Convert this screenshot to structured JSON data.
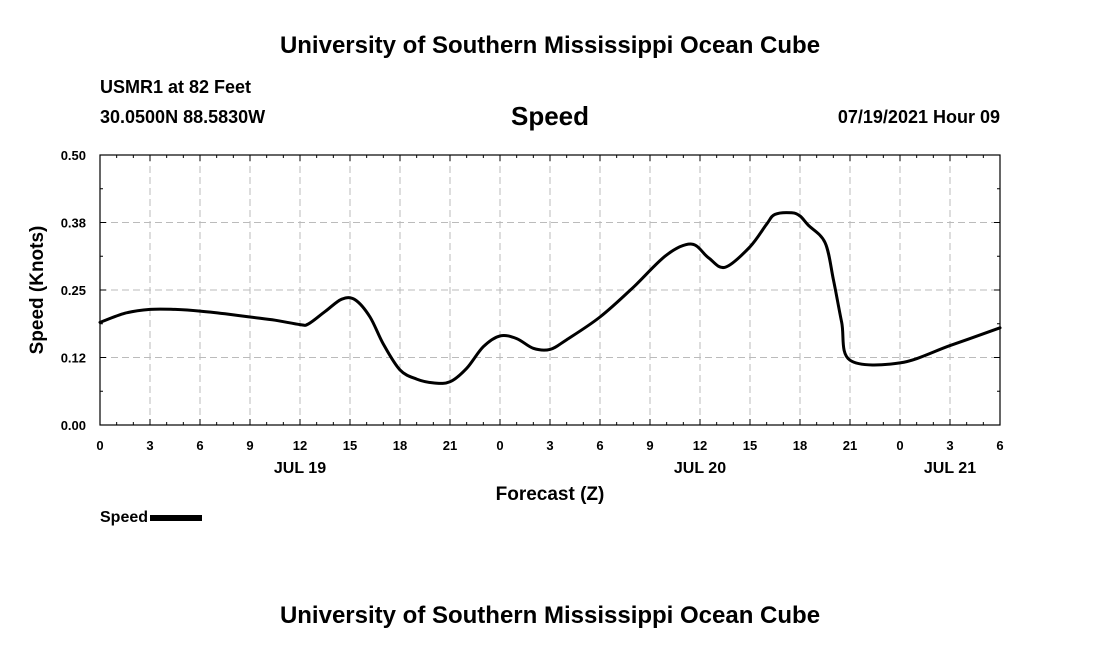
{
  "header": {
    "title_top": "University of Southern Mississippi Ocean Cube",
    "title_bottom": "University of Southern Mississippi Ocean Cube",
    "station": "USMR1 at 82 Feet",
    "location": "30.0500N  88.5830W",
    "datetime": "07/19/2021 Hour 09"
  },
  "legend": {
    "label": "Speed"
  },
  "colors": {
    "line": "#000000",
    "grid": "#bbbbbb"
  },
  "chart_data": {
    "type": "line",
    "title": "Speed",
    "xlabel": "Forecast (Z)",
    "ylabel": "Speed (Knots)",
    "xlim": [
      0,
      54
    ],
    "ylim": [
      0,
      0.5
    ],
    "yticks": [
      0.0,
      0.125,
      0.25,
      0.375,
      0.5
    ],
    "ytick_labels": [
      "0.00",
      "0.12",
      "0.25",
      "0.38",
      "0.50"
    ],
    "xticks": [
      0,
      3,
      6,
      9,
      12,
      15,
      18,
      21,
      24,
      27,
      30,
      33,
      36,
      39,
      42,
      45,
      48,
      51,
      54
    ],
    "xtick_labels": [
      "0",
      "3",
      "6",
      "9",
      "12",
      "15",
      "18",
      "21",
      "0",
      "3",
      "6",
      "9",
      "12",
      "15",
      "18",
      "21",
      "0",
      "3",
      "6"
    ],
    "date_labels": [
      {
        "x": 12,
        "label": "JUL 19"
      },
      {
        "x": 36,
        "label": "JUL 20"
      },
      {
        "x": 51,
        "label": "JUL 21"
      }
    ],
    "series": [
      {
        "name": "Speed",
        "x": [
          0,
          1.5,
          3,
          4.5,
          6,
          7.5,
          9,
          10.5,
          12,
          12.5,
          13.5,
          14.5,
          15.3,
          16.2,
          17,
          18,
          19,
          20,
          21,
          22,
          23,
          24,
          25,
          26,
          27,
          28,
          30,
          32,
          34,
          35.5,
          36.5,
          37.5,
          39,
          40,
          40.5,
          41.5,
          42,
          42.5,
          43.5,
          44,
          44.5,
          45,
          48,
          51,
          54
        ],
        "y": [
          0.19,
          0.207,
          0.214,
          0.214,
          0.211,
          0.206,
          0.2,
          0.194,
          0.186,
          0.187,
          0.21,
          0.233,
          0.232,
          0.2,
          0.15,
          0.102,
          0.085,
          0.078,
          0.08,
          0.105,
          0.145,
          0.165,
          0.16,
          0.142,
          0.14,
          0.158,
          0.2,
          0.255,
          0.315,
          0.335,
          0.31,
          0.292,
          0.33,
          0.372,
          0.39,
          0.393,
          0.387,
          0.37,
          0.338,
          0.27,
          0.19,
          0.12,
          0.115,
          0.147,
          0.18
        ]
      }
    ]
  }
}
